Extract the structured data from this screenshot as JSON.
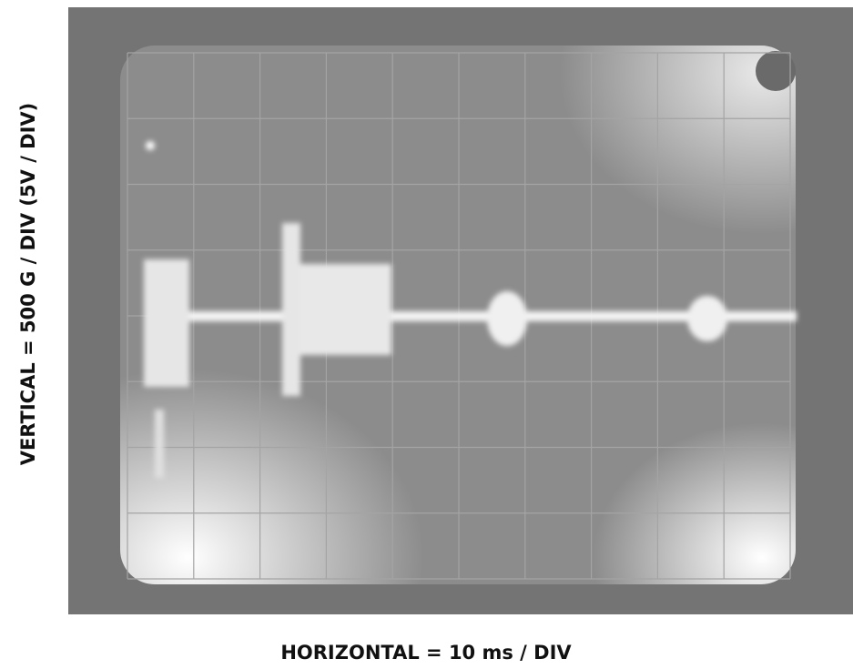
{
  "vertical_label": "VERTICAL = 500 G / DIV (5V / DIV)",
  "horizontal_label": "HORIZONTAL = 10 ms / DIV"
}
